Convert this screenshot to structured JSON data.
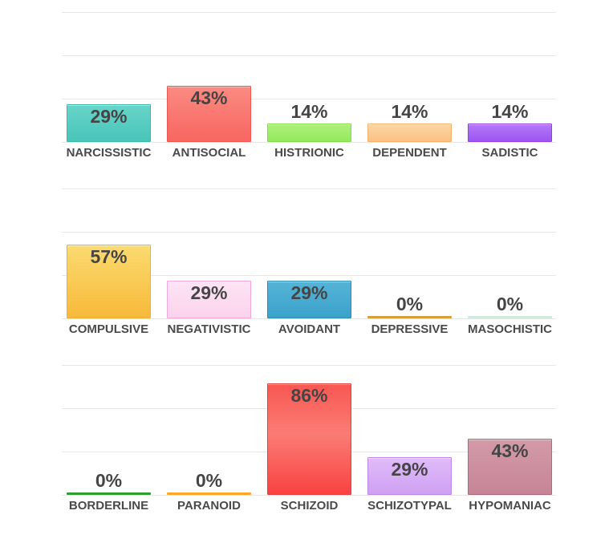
{
  "colors": {
    "background": "#ffffff",
    "gridline": "#e7e7e7",
    "value_text": "#454545",
    "category_text": "#4a4a4a"
  },
  "chart_data": [
    {
      "type": "bar",
      "row": 1,
      "ylim": [
        0,
        100
      ],
      "grid": "on",
      "legend": "none",
      "categories": [
        "NARCISSISTIC",
        "ANTISOCIAL",
        "HISTRIONIC",
        "DEPENDENT",
        "SADISTIC"
      ],
      "values": [
        29,
        43,
        14,
        14,
        14
      ],
      "value_labels": [
        "29%",
        "43%",
        "14%",
        "14%",
        "14%"
      ],
      "bar_styles": [
        {
          "fill_top": "#68d4c9",
          "fill_bottom": "#49c5b9",
          "border": "#3db7ab"
        },
        {
          "fill_top": "#fa8b82",
          "fill_bottom": "#f86660",
          "border": "#ef544e"
        },
        {
          "fill_top": "#adf07b",
          "fill_bottom": "#96e95c",
          "border": "#87da4b"
        },
        {
          "fill_top": "#fdd6a6",
          "fill_bottom": "#fbc184",
          "border": "#f4b26c"
        },
        {
          "fill_top": "#b478f8",
          "fill_bottom": "#9f55f1",
          "border": "#8e41e2"
        }
      ]
    },
    {
      "type": "bar",
      "row": 2,
      "ylim": [
        0,
        100
      ],
      "grid": "on",
      "legend": "none",
      "categories": [
        "COMPULSIVE",
        "NEGATIVISTIC",
        "AVOIDANT",
        "DEPRESSIVE",
        "MASOCHISTIC"
      ],
      "values": [
        57,
        29,
        29,
        0,
        0
      ],
      "value_labels": [
        "57%",
        "29%",
        "29%",
        "0%",
        "0%"
      ],
      "bar_styles": [
        {
          "fill_top": "#fbdb70",
          "fill_bottom": "#f7b93a",
          "border": "#eab037"
        },
        {
          "fill_top": "#fde3f5",
          "fill_bottom": "#fbd3ec",
          "border": "#f3a6d9"
        },
        {
          "fill_top": "#56b3d6",
          "fill_bottom": "#3aa2cc",
          "border": "#2d8db4"
        },
        {
          "line": "#d79e39"
        },
        {
          "line": "#cfe9dc"
        }
      ]
    },
    {
      "type": "bar",
      "row": 3,
      "ylim": [
        0,
        100
      ],
      "grid": "on",
      "legend": "none",
      "categories": [
        "BORDERLINE",
        "PARANOID",
        "SCHIZOID",
        "SCHIZOTYPAL",
        "HYPOMANIAC"
      ],
      "values": [
        0,
        0,
        86,
        29,
        43
      ],
      "value_labels": [
        "0%",
        "0%",
        "86%",
        "29%",
        "43%"
      ],
      "bar_styles": [
        {
          "line": "#2f9e2f"
        },
        {
          "line": "#ffa629"
        },
        {
          "fill_top": "#f95752",
          "fill_mid": "#fa7c74",
          "fill_bottom": "#f94242",
          "border": "#ea3e3e"
        },
        {
          "fill_top": "#dfbcf9",
          "fill_bottom": "#cfa0f3",
          "border": "#bd88ea"
        },
        {
          "fill_top": "#d39aa8",
          "fill_bottom": "#c68597",
          "border": "#aa6c7d"
        }
      ]
    }
  ]
}
